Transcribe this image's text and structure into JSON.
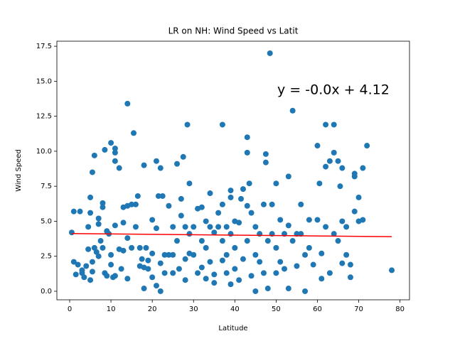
{
  "chart_data": {
    "type": "scatter",
    "title": "LR on NH: Wind Speed vs Latit",
    "x_label": "Latitude",
    "y_label": "Wind Speed",
    "annotation": "y = -0.0x + 4.12",
    "annotation_color": "#ff0000",
    "color": "#1f77b4",
    "x": [
      0.5,
      1,
      1,
      1.5,
      2,
      2.5,
      3,
      3,
      3.5,
      4,
      4.5,
      4.5,
      5,
      5,
      5,
      5.5,
      5.5,
      5.5,
      6,
      6,
      6.5,
      7,
      7,
      7,
      7.5,
      8,
      8,
      8,
      8.5,
      8.5,
      9,
      9,
      9.5,
      10,
      10,
      10,
      10.5,
      11,
      11,
      11,
      11,
      11,
      12,
      12,
      12.5,
      13,
      13,
      13,
      14,
      14,
      14,
      14,
      15,
      15,
      15.5,
      16,
      16,
      16.5,
      17,
      17,
      17.5,
      18,
      18,
      18,
      18.5,
      19,
      19,
      20,
      20,
      20,
      21,
      21,
      21,
      21.5,
      22,
      22,
      22,
      22.5,
      23,
      23,
      24,
      24,
      25,
      25,
      25,
      26,
      26,
      26.5,
      27,
      27,
      27.5,
      28,
      28,
      28,
      28.5,
      29,
      29,
      29,
      30,
      30,
      31,
      31,
      32,
      32,
      32,
      33,
      33,
      33,
      34,
      34,
      34,
      35,
      35,
      35,
      36,
      36,
      37,
      37,
      37,
      37,
      38,
      38,
      38,
      39,
      39,
      39,
      39,
      40,
      40,
      40,
      41,
      41,
      41.5,
      42,
      42,
      43,
      43,
      43,
      43,
      43.5,
      44,
      44,
      45,
      45,
      45,
      46,
      46,
      47,
      47,
      47.5,
      47.5,
      48,
      48,
      48.5,
      49,
      49,
      50,
      50,
      50,
      51,
      51,
      52,
      52,
      53,
      53,
      53,
      54,
      54,
      55,
      55,
      56,
      56,
      57,
      57,
      58,
      58,
      59,
      60,
      60,
      60.5,
      61,
      61,
      62,
      62,
      62,
      63,
      63,
      64,
      64,
      64,
      65,
      65,
      65.5,
      66,
      66,
      66,
      67,
      67,
      68,
      68,
      69,
      69,
      69,
      70,
      70,
      71,
      71,
      72,
      78
    ],
    "values": [
      4.2,
      5.7,
      2.1,
      1.2,
      1.9,
      5.7,
      1.5,
      1.3,
      1.0,
      1.8,
      4.6,
      3.0,
      6.7,
      5.6,
      0.8,
      8.5,
      2.1,
      1.4,
      9.7,
      3.1,
      2.8,
      5.2,
      4.8,
      2.5,
      3.6,
      6.3,
      6.0,
      3.1,
      10.1,
      1.3,
      4.3,
      1.1,
      4.1,
      10.6,
      2.6,
      1.9,
      1.0,
      10.2,
      9.9,
      9.3,
      4.7,
      1.1,
      8.8,
      3.0,
      1.6,
      6.0,
      4.9,
      2.9,
      13.4,
      6.1,
      3.8,
      0.9,
      6.2,
      3.1,
      11.3,
      6.2,
      4.6,
      6.8,
      3.1,
      1.8,
      2.3,
      9.0,
      1.7,
      0.2,
      3.1,
      2.2,
      1.6,
      5.1,
      2.7,
      1.0,
      9.3,
      4.5,
      0.4,
      6.8,
      8.8,
      2.0,
      0.0,
      6.8,
      1.3,
      2.6,
      6.1,
      2.6,
      4.6,
      2.6,
      1.3,
      9.1,
      3.6,
      1.6,
      6.6,
      5.4,
      9.6,
      4.6,
      2.3,
      0.8,
      11.9,
      7.7,
      4.1,
      2.7,
      4.6,
      2.6,
      5.9,
      1.3,
      6.0,
      3.6,
      1.7,
      5.0,
      3.1,
      0.9,
      7.0,
      4.6,
      2.1,
      4.2,
      1.2,
      0.6,
      5.6,
      4.6,
      11.9,
      6.2,
      3.6,
      2.2,
      4.6,
      2.6,
      1.3,
      7.2,
      6.7,
      4.1,
      0.5,
      5.0,
      3.1,
      1.6,
      4.9,
      0.8,
      6.6,
      7.3,
      2.3,
      11.0,
      9.9,
      6.1,
      3.6,
      7.7,
      5.6,
      1.1,
      4.6,
      0.0,
      2.6,
      4.1,
      2.1,
      6.2,
      1.3,
      9.8,
      9.2,
      3.6,
      0.2,
      17.0,
      6.2,
      4.1,
      7.7,
      3.1,
      1.3,
      5.1,
      2.1,
      4.1,
      1.6,
      8.2,
      4.7,
      0.2,
      12.9,
      3.6,
      4.1,
      1.8,
      6.2,
      4.1,
      0.0,
      2.6,
      5.1,
      3.1,
      1.9,
      10.4,
      5.1,
      7.7,
      2.7,
      0.9,
      8.9,
      11.9,
      4.6,
      9.3,
      1.3,
      9.9,
      11.9,
      4.1,
      3.6,
      9.3,
      7.5,
      8.8,
      5.0,
      2.0,
      2.6,
      4.6,
      1.9,
      1.0,
      8.4,
      8.2,
      5.7,
      6.7,
      5.0,
      8.8,
      5.1,
      10.4,
      1.5
    ],
    "fit": {
      "color": "#ff0000",
      "x": [
        0.5,
        78
      ],
      "values": [
        4.12,
        3.9
      ]
    },
    "xlim": [
      -3.1,
      82.3
    ],
    "ylim": [
      -0.61,
      17.86
    ],
    "xticks": [
      0,
      10,
      20,
      30,
      40,
      50,
      60,
      70,
      80
    ],
    "yticks": [
      {
        "value": 0,
        "label": "0.0"
      },
      2.5,
      {
        "value": 5,
        "label": "5.0"
      },
      7.5,
      {
        "value": 10,
        "label": "10.0"
      },
      12.5,
      {
        "value": 15,
        "label": "15.0"
      },
      17.5
    ]
  }
}
